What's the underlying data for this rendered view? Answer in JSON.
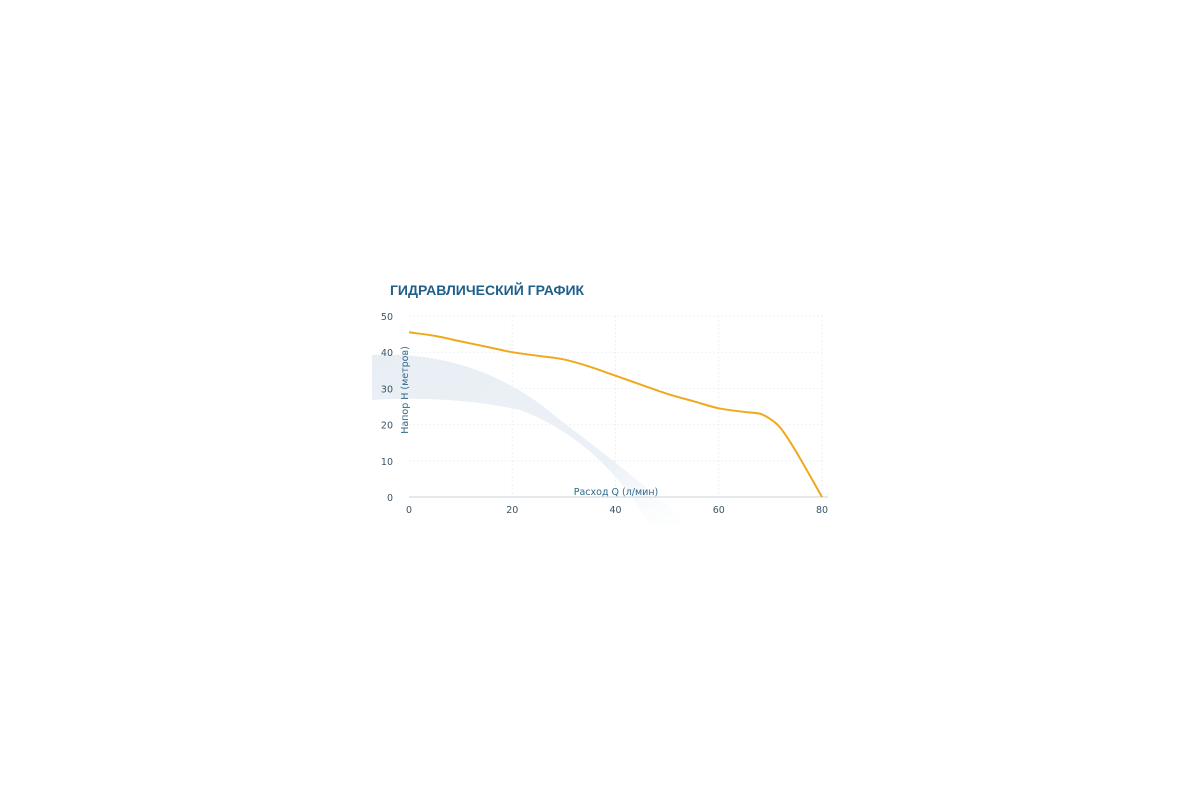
{
  "chart_data": {
    "type": "line",
    "title": "ГИДРАВЛИЧЕСКИЙ ГРАФИК",
    "xlabel": "Расход Q (л/мин)",
    "ylabel": "Напор Н (метров)",
    "xlim": [
      0,
      80
    ],
    "ylim": [
      0,
      50
    ],
    "xticks": [
      0,
      20,
      40,
      60,
      80
    ],
    "yticks": [
      0,
      10,
      20,
      30,
      40,
      50
    ],
    "grid": true,
    "series": [
      {
        "color": "#f0a81c",
        "x": [
          0,
          5,
          10,
          15,
          20,
          25,
          30,
          35,
          40,
          45,
          50,
          55,
          60,
          65,
          68,
          70,
          72,
          75,
          80
        ],
        "y": [
          45.5,
          44.5,
          43,
          41.5,
          40,
          39,
          38,
          36,
          33.5,
          31,
          28.5,
          26.5,
          24.5,
          23.5,
          23,
          21.5,
          19,
          12.5,
          0
        ]
      }
    ]
  }
}
